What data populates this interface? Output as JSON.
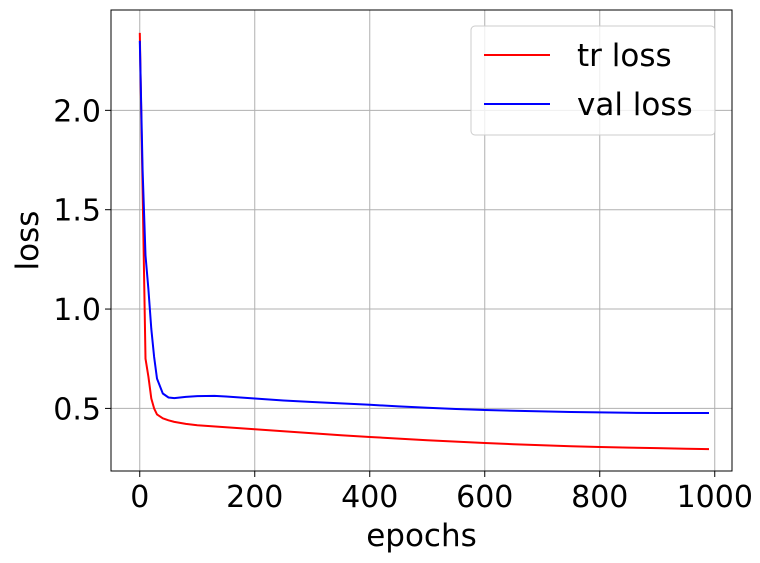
{
  "chart_data": {
    "type": "line",
    "title": "",
    "xlabel": "epochs",
    "ylabel": "loss",
    "xlim": [
      -50,
      1030
    ],
    "ylim": [
      0.185,
      2.505
    ],
    "xticks": [
      0,
      200,
      400,
      600,
      800,
      1000
    ],
    "yticks": [
      0.5,
      1.0,
      1.5,
      2.0
    ],
    "xtick_labels": [
      "0",
      "200",
      "400",
      "600",
      "800",
      "1000"
    ],
    "ytick_labels": [
      "0.5",
      "1.0",
      "1.5",
      "2.0"
    ],
    "grid": true,
    "legend_position": "top-right",
    "series": [
      {
        "name": "tr loss",
        "color": "#ff0000",
        "x": [
          0,
          5,
          10,
          15,
          20,
          25,
          30,
          40,
          50,
          60,
          80,
          100,
          150,
          200,
          250,
          300,
          350,
          400,
          450,
          500,
          550,
          600,
          650,
          700,
          750,
          800,
          850,
          900,
          950,
          990
        ],
        "y": [
          2.39,
          1.6,
          0.75,
          0.66,
          0.55,
          0.5,
          0.47,
          0.45,
          0.44,
          0.432,
          0.422,
          0.415,
          0.405,
          0.395,
          0.385,
          0.375,
          0.365,
          0.356,
          0.348,
          0.34,
          0.333,
          0.326,
          0.32,
          0.315,
          0.31,
          0.306,
          0.303,
          0.3,
          0.297,
          0.295
        ]
      },
      {
        "name": "val loss",
        "color": "#0000ff",
        "x": [
          0,
          5,
          10,
          15,
          20,
          25,
          30,
          40,
          50,
          60,
          80,
          100,
          130,
          150,
          200,
          250,
          300,
          350,
          400,
          450,
          500,
          550,
          600,
          650,
          700,
          750,
          800,
          850,
          900,
          950,
          990
        ],
        "y": [
          2.35,
          1.7,
          1.27,
          1.1,
          0.9,
          0.76,
          0.65,
          0.575,
          0.555,
          0.552,
          0.558,
          0.562,
          0.563,
          0.56,
          0.55,
          0.54,
          0.532,
          0.525,
          0.518,
          0.51,
          0.503,
          0.497,
          0.492,
          0.488,
          0.485,
          0.482,
          0.48,
          0.478,
          0.477,
          0.477,
          0.477
        ]
      }
    ]
  }
}
